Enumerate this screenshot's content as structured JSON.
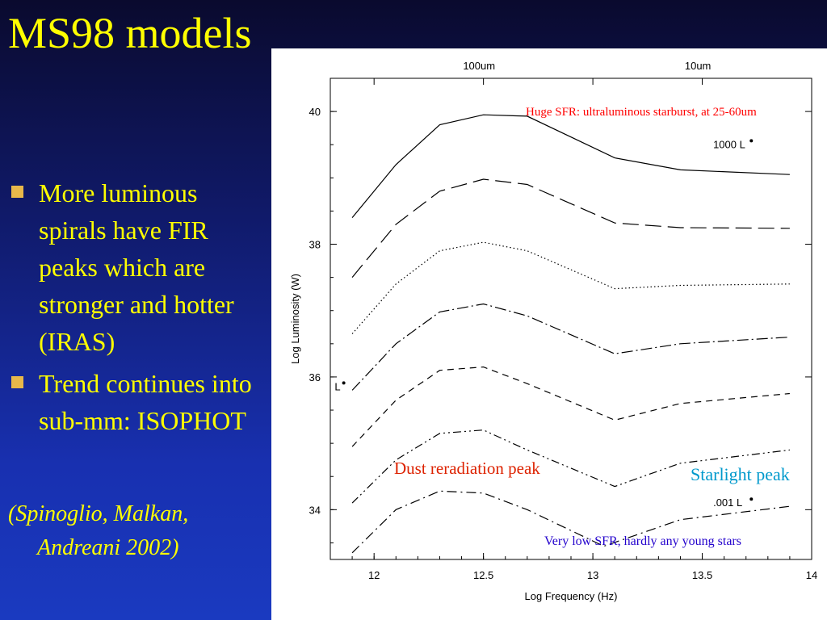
{
  "slide": {
    "title": "MS98 models",
    "bullets": [
      "More luminous spirals have FIR peaks which are stronger and hotter (IRAS)",
      "Trend continues into sub-mm: ISOPHOT"
    ],
    "citation_line1": "(Spinoglio, Malkan,",
    "citation_line2": "Andreani 2002)"
  },
  "colors": {
    "title": "#ffff00",
    "bullet_marker": "#e8b84a",
    "annotation_red": "#ff0000",
    "annotation_orange": "#dd2200",
    "annotation_cyan": "#0099cc",
    "annotation_blue": "#2200cc"
  },
  "chart_data": {
    "type": "line",
    "xlabel": "Log Frequency (Hz)",
    "ylabel": "Log Luminosity (W)",
    "xlim": [
      11.8,
      14
    ],
    "ylim": [
      33.25,
      40.5
    ],
    "xticks": [
      "12",
      "12.5",
      "13",
      "13.5",
      "14"
    ],
    "yticks": [
      "34",
      "36",
      "38",
      "40"
    ],
    "top_axis_labels": [
      {
        "text": "100um",
        "x": 12.48
      },
      {
        "text": "10um",
        "x": 13.48
      }
    ],
    "curve_labels": [
      {
        "text": "1000 L",
        "x": 13.55,
        "y": 39.45
      },
      {
        "text": "L",
        "x": 11.82,
        "y": 35.8
      },
      {
        "text": ".001 L",
        "x": 13.55,
        "y": 34.05
      }
    ],
    "series": [
      {
        "dash": "solid",
        "x": [
          11.9,
          12.1,
          12.3,
          12.5,
          12.7,
          13.1,
          13.4,
          13.9
        ],
        "y": [
          38.4,
          39.2,
          39.8,
          39.95,
          39.93,
          39.3,
          39.12,
          39.05
        ]
      },
      {
        "dash": "longdash",
        "x": [
          11.9,
          12.1,
          12.3,
          12.5,
          12.7,
          13.1,
          13.4,
          13.9
        ],
        "y": [
          37.5,
          38.3,
          38.8,
          38.98,
          38.9,
          38.32,
          38.25,
          38.24
        ]
      },
      {
        "dash": "dotted",
        "x": [
          11.9,
          12.1,
          12.3,
          12.5,
          12.7,
          13.1,
          13.4,
          13.9
        ],
        "y": [
          36.65,
          37.4,
          37.9,
          38.03,
          37.9,
          37.33,
          37.38,
          37.4
        ]
      },
      {
        "dash": "dashdot",
        "x": [
          11.9,
          12.1,
          12.3,
          12.5,
          12.7,
          13.1,
          13.4,
          13.9
        ],
        "y": [
          35.8,
          36.5,
          36.98,
          37.1,
          36.92,
          36.35,
          36.5,
          36.6
        ]
      },
      {
        "dash": "dashed",
        "x": [
          11.9,
          12.1,
          12.3,
          12.5,
          12.7,
          13.1,
          13.4,
          13.9
        ],
        "y": [
          34.95,
          35.65,
          36.1,
          36.15,
          35.9,
          35.35,
          35.6,
          35.75
        ]
      },
      {
        "dash": "dashdotdot",
        "x": [
          11.9,
          12.1,
          12.3,
          12.5,
          12.7,
          13.1,
          13.4,
          13.9
        ],
        "y": [
          34.1,
          34.75,
          35.15,
          35.2,
          34.9,
          34.35,
          34.7,
          34.9
        ]
      },
      {
        "dash": "dashdot2",
        "x": [
          11.9,
          12.1,
          12.3,
          12.5,
          12.7,
          13.05,
          13.4,
          13.9
        ],
        "y": [
          33.35,
          34.0,
          34.28,
          34.25,
          34.0,
          33.45,
          33.85,
          34.05
        ]
      }
    ],
    "annotations": [
      {
        "text": "Huge SFR: ultraluminous starburst, at 25-60um",
        "color": "red",
        "size": "small"
      },
      {
        "text": "Dust reradiation peak",
        "color": "orange",
        "size": "large"
      },
      {
        "text": "Starlight peak",
        "color": "cyan",
        "size": "large"
      },
      {
        "text": "Very low SFR, hardly any young stars",
        "color": "blue",
        "size": "small"
      }
    ]
  }
}
